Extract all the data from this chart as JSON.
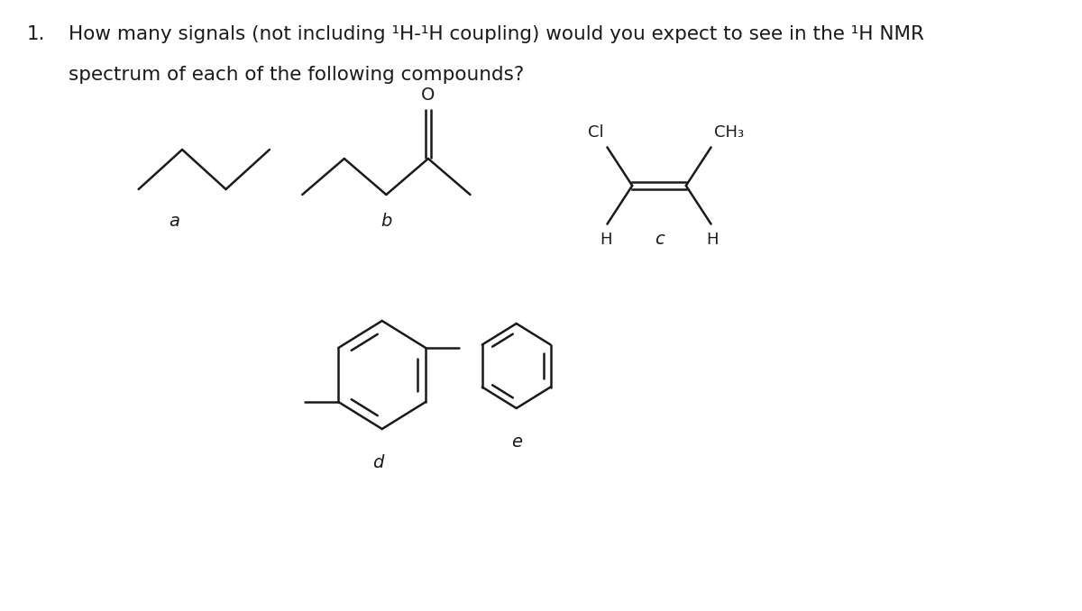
{
  "title_number": "1.",
  "question_line1": "How many signals (not including ¹H-¹H coupling) would you expect to see in the ¹H NMR",
  "question_line2": "spectrum of each of the following compounds?",
  "label_a": "a",
  "label_b": "b",
  "label_c": "c",
  "label_d": "d",
  "label_e": "e",
  "text_color": "#1a1a1a",
  "bg_color": "#ffffff",
  "font_size_question": 15.5,
  "font_size_label": 14,
  "font_size_atom": 13,
  "line_width": 1.8
}
